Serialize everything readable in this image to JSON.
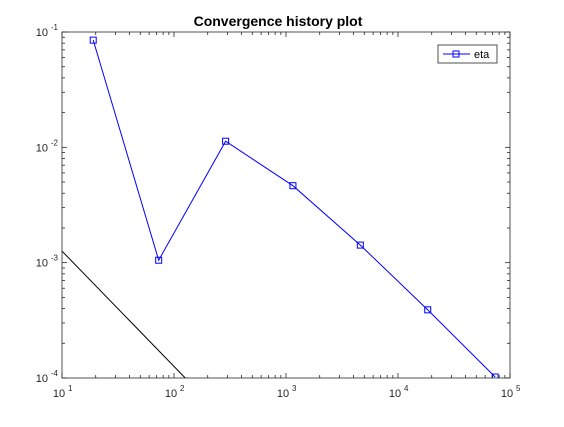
{
  "chart_data": {
    "type": "line",
    "title": "Convergence history plot",
    "xlabel": "",
    "ylabel": "",
    "x_scale": "log",
    "y_scale": "log",
    "xlim": [
      10,
      100000
    ],
    "ylim": [
      0.0001,
      0.1
    ],
    "grid": false,
    "legend_position": "top-right",
    "x_ticks": [
      {
        "base": "10",
        "exp": "1",
        "value": 10
      },
      {
        "base": "10",
        "exp": "2",
        "value": 100
      },
      {
        "base": "10",
        "exp": "3",
        "value": 1000
      },
      {
        "base": "10",
        "exp": "4",
        "value": 10000
      },
      {
        "base": "10",
        "exp": "5",
        "value": 100000
      }
    ],
    "y_ticks": [
      {
        "base": "10",
        "exp": "-1",
        "value": 0.1
      },
      {
        "base": "10",
        "exp": "-2",
        "value": 0.01
      },
      {
        "base": "10",
        "exp": "-3",
        "value": 0.001
      },
      {
        "base": "10",
        "exp": "-4",
        "value": 0.0001
      }
    ],
    "series": [
      {
        "name": "eta",
        "color": "#0000ff",
        "marker": "square",
        "x": [
          19,
          73,
          289,
          1153,
          4609,
          18433,
          73729
        ],
        "y": [
          0.085,
          0.00105,
          0.0113,
          0.00465,
          0.00142,
          0.00039,
          0.000102
        ]
      },
      {
        "name": "",
        "color": "#000000",
        "marker": "none",
        "x": [
          10,
          240
        ],
        "y": [
          0.00126,
          5.25e-05
        ]
      }
    ]
  }
}
